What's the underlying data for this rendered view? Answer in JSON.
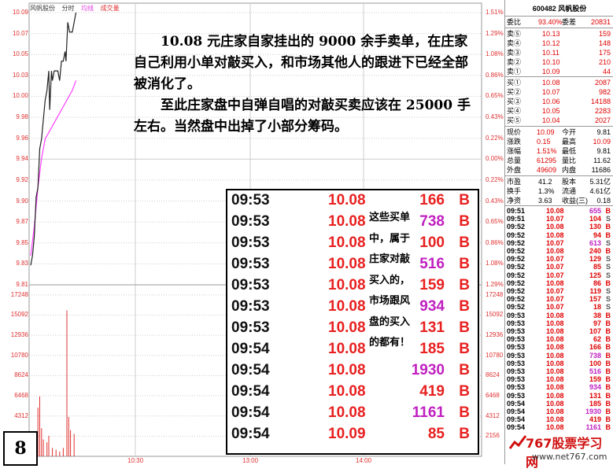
{
  "header": {
    "stock_name": "风帆股份",
    "mode": "分时",
    "tabs": [
      "均线",
      "成交量"
    ]
  },
  "left_axis": [
    "10.09",
    "10.07",
    "10.05",
    "10.03",
    "10.00",
    "9.98",
    "9.96",
    "9.94",
    "9.92",
    "9.90",
    "9.87",
    "9.85",
    "9.83",
    "9.81"
  ],
  "right_axis": [
    "1.51%",
    "1.29%",
    "1.08%",
    "0.86%",
    "0.65%",
    "0.43%",
    "0.22%",
    "0.00%",
    "0.22%",
    "0.43%",
    "0.65%",
    "0.86%",
    "1.08%",
    "1.29%"
  ],
  "volume_axis": [
    "17248",
    "15092",
    "12936",
    "10780",
    "8624",
    "6468",
    "4312",
    "2156"
  ],
  "time_axis": [
    "10:30",
    "13:00",
    "14:00"
  ],
  "colors": {
    "price_line": "#222222",
    "avg_line": "#ff40ff",
    "volume_bars": "#e03030",
    "grid": "#c8c8c8"
  },
  "price_series": [
    [
      0,
      9.83
    ],
    [
      1,
      9.84
    ],
    [
      2,
      9.86
    ],
    [
      3,
      9.9
    ],
    [
      4,
      9.91
    ],
    [
      5,
      9.95
    ],
    [
      6,
      9.96
    ],
    [
      7,
      9.98
    ],
    [
      8,
      10.0
    ],
    [
      9,
      10.01
    ],
    [
      10,
      10.03
    ],
    [
      10.5,
      9.99
    ],
    [
      11.5,
      10.03
    ],
    [
      12,
      10.02
    ],
    [
      13,
      10.03
    ],
    [
      15,
      10.03
    ],
    [
      16,
      10.02
    ],
    [
      17,
      10.04
    ],
    [
      18,
      10.04
    ],
    [
      19,
      10.05
    ],
    [
      19.5,
      10.04
    ],
    [
      20.5,
      10.08
    ],
    [
      21.5,
      10.07
    ],
    [
      23,
      10.07
    ],
    [
      25,
      10.09
    ]
  ],
  "avg_series": [
    [
      0,
      9.84
    ],
    [
      2,
      9.87
    ],
    [
      4,
      9.91
    ],
    [
      6,
      9.94
    ],
    [
      8,
      9.96
    ],
    [
      11,
      9.97
    ],
    [
      14,
      9.98
    ],
    [
      17,
      9.99
    ],
    [
      20,
      10.0
    ],
    [
      23,
      10.01
    ],
    [
      25,
      10.02
    ]
  ],
  "volume_series": [
    [
      1,
      300
    ],
    [
      2,
      1200
    ],
    [
      3,
      2600
    ],
    [
      4,
      5200
    ],
    [
      5,
      6400
    ],
    [
      6,
      3000
    ],
    [
      7,
      1800
    ],
    [
      9,
      1500
    ],
    [
      10,
      2200
    ],
    [
      12,
      900
    ],
    [
      14,
      700
    ],
    [
      16,
      500
    ],
    [
      18,
      900
    ],
    [
      20,
      15600
    ],
    [
      21,
      4200
    ],
    [
      22,
      2800
    ],
    [
      24,
      2400
    ]
  ],
  "note": {
    "p1": "10.08 元庄家自家挂出的 9000 余手卖单，在庄家自己利用小单对敲买入，和市场其他人的跟进下已经全部被消化了。",
    "p2": "至此庄家盘中自弹自唱的对敲买卖应该在 25000 手左右。当然盘中出掉了小部分筹码。"
  },
  "overlay": {
    "rows": [
      {
        "t": "09:53",
        "p": "10.08",
        "v": "166",
        "f": "B",
        "mag": false
      },
      {
        "t": "09:53",
        "p": "10.08",
        "v": "738",
        "f": "B",
        "mag": true
      },
      {
        "t": "09:53",
        "p": "10.08",
        "v": "100",
        "f": "B",
        "mag": false
      },
      {
        "t": "09:53",
        "p": "10.08",
        "v": "516",
        "f": "B",
        "mag": true
      },
      {
        "t": "09:53",
        "p": "10.08",
        "v": "159",
        "f": "B",
        "mag": false
      },
      {
        "t": "09:53",
        "p": "10.08",
        "v": "934",
        "f": "B",
        "mag": true
      },
      {
        "t": "09:53",
        "p": "10.08",
        "v": "131",
        "f": "B",
        "mag": false
      },
      {
        "t": "09:54",
        "p": "10.08",
        "v": "185",
        "f": "B",
        "mag": false
      },
      {
        "t": "09:54",
        "p": "10.08",
        "v": "1930",
        "f": "B",
        "mag": true
      },
      {
        "t": "09:54",
        "p": "10.08",
        "v": "419",
        "f": "B",
        "mag": false
      },
      {
        "t": "09:54",
        "p": "10.08",
        "v": "1161",
        "f": "B",
        "mag": true
      },
      {
        "t": "09:54",
        "p": "10.09",
        "v": "85",
        "f": "B",
        "mag": false
      }
    ],
    "comment": "这些买单中，属于庄家对敲买入的，市场跟风盘的买入的都有！"
  },
  "quote": {
    "title": "600482 风帆股份",
    "wb": {
      "l1": "委比",
      "v1": "93.40%",
      "l2": "委差",
      "v2": "20831"
    },
    "asks": [
      {
        "l": "卖⑤",
        "p": "10.13",
        "v": "159"
      },
      {
        "l": "卖④",
        "p": "10.12",
        "v": "148"
      },
      {
        "l": "卖③",
        "p": "10.11",
        "v": "175"
      },
      {
        "l": "卖②",
        "p": "10.10",
        "v": "210"
      },
      {
        "l": "卖①",
        "p": "10.09",
        "v": "44"
      }
    ],
    "bids": [
      {
        "l": "买①",
        "p": "10.08",
        "v": "2087"
      },
      {
        "l": "买②",
        "p": "10.07",
        "v": "982"
      },
      {
        "l": "买③",
        "p": "10.06",
        "v": "14188"
      },
      {
        "l": "买④",
        "p": "10.05",
        "v": "2283"
      },
      {
        "l": "买⑤",
        "p": "10.04",
        "v": "2027"
      }
    ],
    "stats": [
      {
        "l1": "现价",
        "v1": "10.09",
        "l2": "今开",
        "v2": "9.81"
      },
      {
        "l1": "涨跌",
        "v1": "0.15",
        "l2": "最高",
        "v2": "10.09"
      },
      {
        "l1": "涨幅",
        "v1": "1.51%",
        "l2": "最低",
        "v2": "9.81"
      },
      {
        "l1": "总量",
        "v1": "61295",
        "l2": "量比",
        "v2": "11.62"
      },
      {
        "l1": "外盘",
        "v1": "49609",
        "l2": "内盘",
        "v2": "11686"
      }
    ],
    "fund": [
      {
        "l1": "市盈",
        "v1": "41.2",
        "l2": "股本",
        "v2": "5.31亿"
      },
      {
        "l1": "换手",
        "v1": "1.3%",
        "l2": "流通",
        "v2": "4.61亿"
      },
      {
        "l1": "净资",
        "v1": "3.63",
        "l2": "收益(三)",
        "v2": "0.18"
      }
    ],
    "ticks": [
      {
        "t": "09:51",
        "p": "10.08",
        "v": "655",
        "f": "B",
        "c": "mag"
      },
      {
        "t": "09:51",
        "p": "10.07",
        "v": "104",
        "f": "S",
        "c": "red"
      },
      {
        "t": "09:52",
        "p": "10.08",
        "v": "130",
        "f": "B",
        "c": "red"
      },
      {
        "t": "09:52",
        "p": "10.08",
        "v": "94",
        "f": "B",
        "c": "red"
      },
      {
        "t": "09:52",
        "p": "10.07",
        "v": "613",
        "f": "S",
        "c": "mag"
      },
      {
        "t": "09:52",
        "p": "10.08",
        "v": "240",
        "f": "B",
        "c": "red"
      },
      {
        "t": "09:52",
        "p": "10.07",
        "v": "129",
        "f": "S",
        "c": "red"
      },
      {
        "t": "09:52",
        "p": "10.07",
        "v": "85",
        "f": "S",
        "c": "red"
      },
      {
        "t": "09:52",
        "p": "10.07",
        "v": "125",
        "f": "S",
        "c": "red"
      },
      {
        "t": "09:52",
        "p": "10.08",
        "v": "86",
        "f": "B",
        "c": "red"
      },
      {
        "t": "09:52",
        "p": "10.07",
        "v": "119",
        "f": "S",
        "c": "red"
      },
      {
        "t": "09:52",
        "p": "10.07",
        "v": "157",
        "f": "S",
        "c": "red"
      },
      {
        "t": "09:52",
        "p": "10.07",
        "v": "18",
        "f": "S",
        "c": "red"
      },
      {
        "t": "09:53",
        "p": "10.08",
        "v": "38",
        "f": "B",
        "c": "red"
      },
      {
        "t": "09:53",
        "p": "10.08",
        "v": "97",
        "f": "B",
        "c": "red"
      },
      {
        "t": "09:53",
        "p": "10.08",
        "v": "107",
        "f": "B",
        "c": "red"
      },
      {
        "t": "09:53",
        "p": "10.08",
        "v": "62",
        "f": "B",
        "c": "red"
      },
      {
        "t": "09:53",
        "p": "10.08",
        "v": "166",
        "f": "B",
        "c": "red"
      },
      {
        "t": "09:53",
        "p": "10.08",
        "v": "738",
        "f": "B",
        "c": "mag"
      },
      {
        "t": "09:53",
        "p": "10.08",
        "v": "100",
        "f": "B",
        "c": "red"
      },
      {
        "t": "09:53",
        "p": "10.08",
        "v": "516",
        "f": "B",
        "c": "mag"
      },
      {
        "t": "09:53",
        "p": "10.08",
        "v": "159",
        "f": "B",
        "c": "red"
      },
      {
        "t": "09:53",
        "p": "10.08",
        "v": "934",
        "f": "B",
        "c": "mag"
      },
      {
        "t": "09:53",
        "p": "10.08",
        "v": "131",
        "f": "B",
        "c": "red"
      },
      {
        "t": "09:54",
        "p": "10.08",
        "v": "185",
        "f": "B",
        "c": "red"
      },
      {
        "t": "09:54",
        "p": "10.08",
        "v": "1930",
        "f": "B",
        "c": "mag"
      },
      {
        "t": "09:54",
        "p": "10.08",
        "v": "419",
        "f": "B",
        "c": "red"
      },
      {
        "t": "09:54",
        "p": "10.08",
        "v": "1161",
        "f": "B",
        "c": "mag"
      }
    ]
  },
  "page_number": "8",
  "logo": {
    "name": "767股票学习网",
    "url": "www.net767.com"
  }
}
